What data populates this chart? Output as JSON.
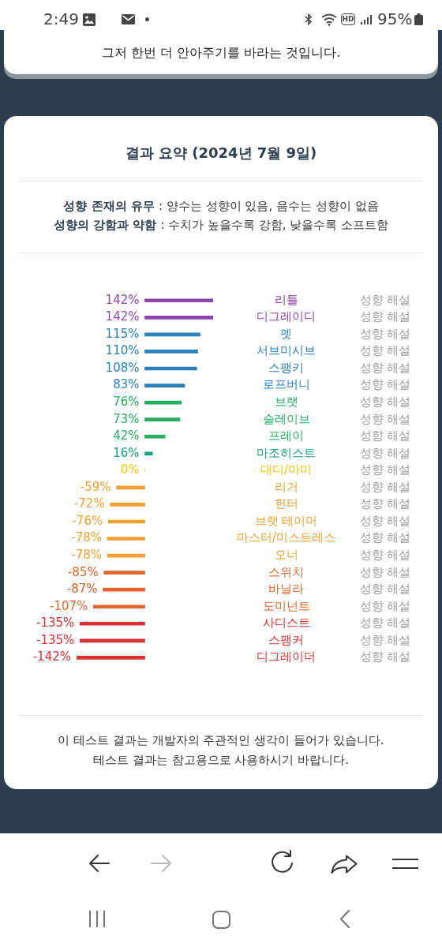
{
  "chart_data": {
    "type": "bar",
    "orientation": "horizontal",
    "title": "결과 요약 (2024년 7월 9일)",
    "subtitle": "성향 존재의 유무 : 양수는 성향이 있음, 음수는 성향이 없음\n성향의 강함과 약함 : 수치가 높을수록 강함, 낮을수록 소프트함",
    "categories": [
      "리틀",
      "디그레이디",
      "펫",
      "서브미시브",
      "스팽키",
      "로프버니",
      "브랫",
      "슬레이브",
      "프레이",
      "마조히스트",
      "대디/마미",
      "리거",
      "헌터",
      "브랫 테이머",
      "마스터/미스트레스",
      "오너",
      "스위치",
      "바닐라",
      "도미넌트",
      "사디스트",
      "스팽커",
      "디그레이더"
    ],
    "values": [
      142,
      142,
      115,
      110,
      108,
      83,
      76,
      73,
      42,
      16,
      0,
      -59,
      -72,
      -76,
      -78,
      -78,
      -85,
      -87,
      -107,
      -135,
      -135,
      -142
    ],
    "value_labels": [
      "142%",
      "142%",
      "115%",
      "110%",
      "108%",
      "83%",
      "76%",
      "73%",
      "42%",
      "16%",
      "0%",
      "-59%",
      "-72%",
      "-76%",
      "-78%",
      "-78%",
      "-85%",
      "-87%",
      "-107%",
      "-135%",
      "-135%",
      "-142%"
    ],
    "colors": [
      "#8e44ad",
      "#8e44ad",
      "#2a7fba",
      "#2a7fba",
      "#2a7fba",
      "#2a7fba",
      "#27ae60",
      "#27ae60",
      "#27ae60",
      "#16a085",
      "#f1c40f",
      "#f0a030",
      "#f0a030",
      "#f0a030",
      "#f0a030",
      "#f0a030",
      "#e2652b",
      "#e2652b",
      "#e2652b",
      "#dc2f2f",
      "#dc2f2f",
      "#dc2f2f"
    ],
    "xlim": [
      -142,
      142
    ],
    "tick_labels": "y",
    "annotations": [
      "2:49",
      "HD",
      "95%",
      "그저 한번 더 안아주기를 바라는 것입니다.",
      "이 테스트 결과는 개발자의 주관적인 생각이 들어가 있습니다.",
      "테스트 결과는 참고용으로 사용하시기 바랍니다.",
      "성향 해설",
      "성향 해설",
      "성향 해설",
      "성향 해설",
      "성향 해설",
      "성향 해설",
      "성향 해설",
      "성향 해설",
      "성향 해설",
      "성향 해설",
      "성향 해설",
      "성향 해설",
      "성향 해설",
      "성향 해설",
      "성향 해설",
      "성향 해설",
      "성향 해설",
      "성향 해설",
      "성향 해설",
      "성향 해설",
      "성향 해설",
      "성향 해설"
    ]
  }
}
